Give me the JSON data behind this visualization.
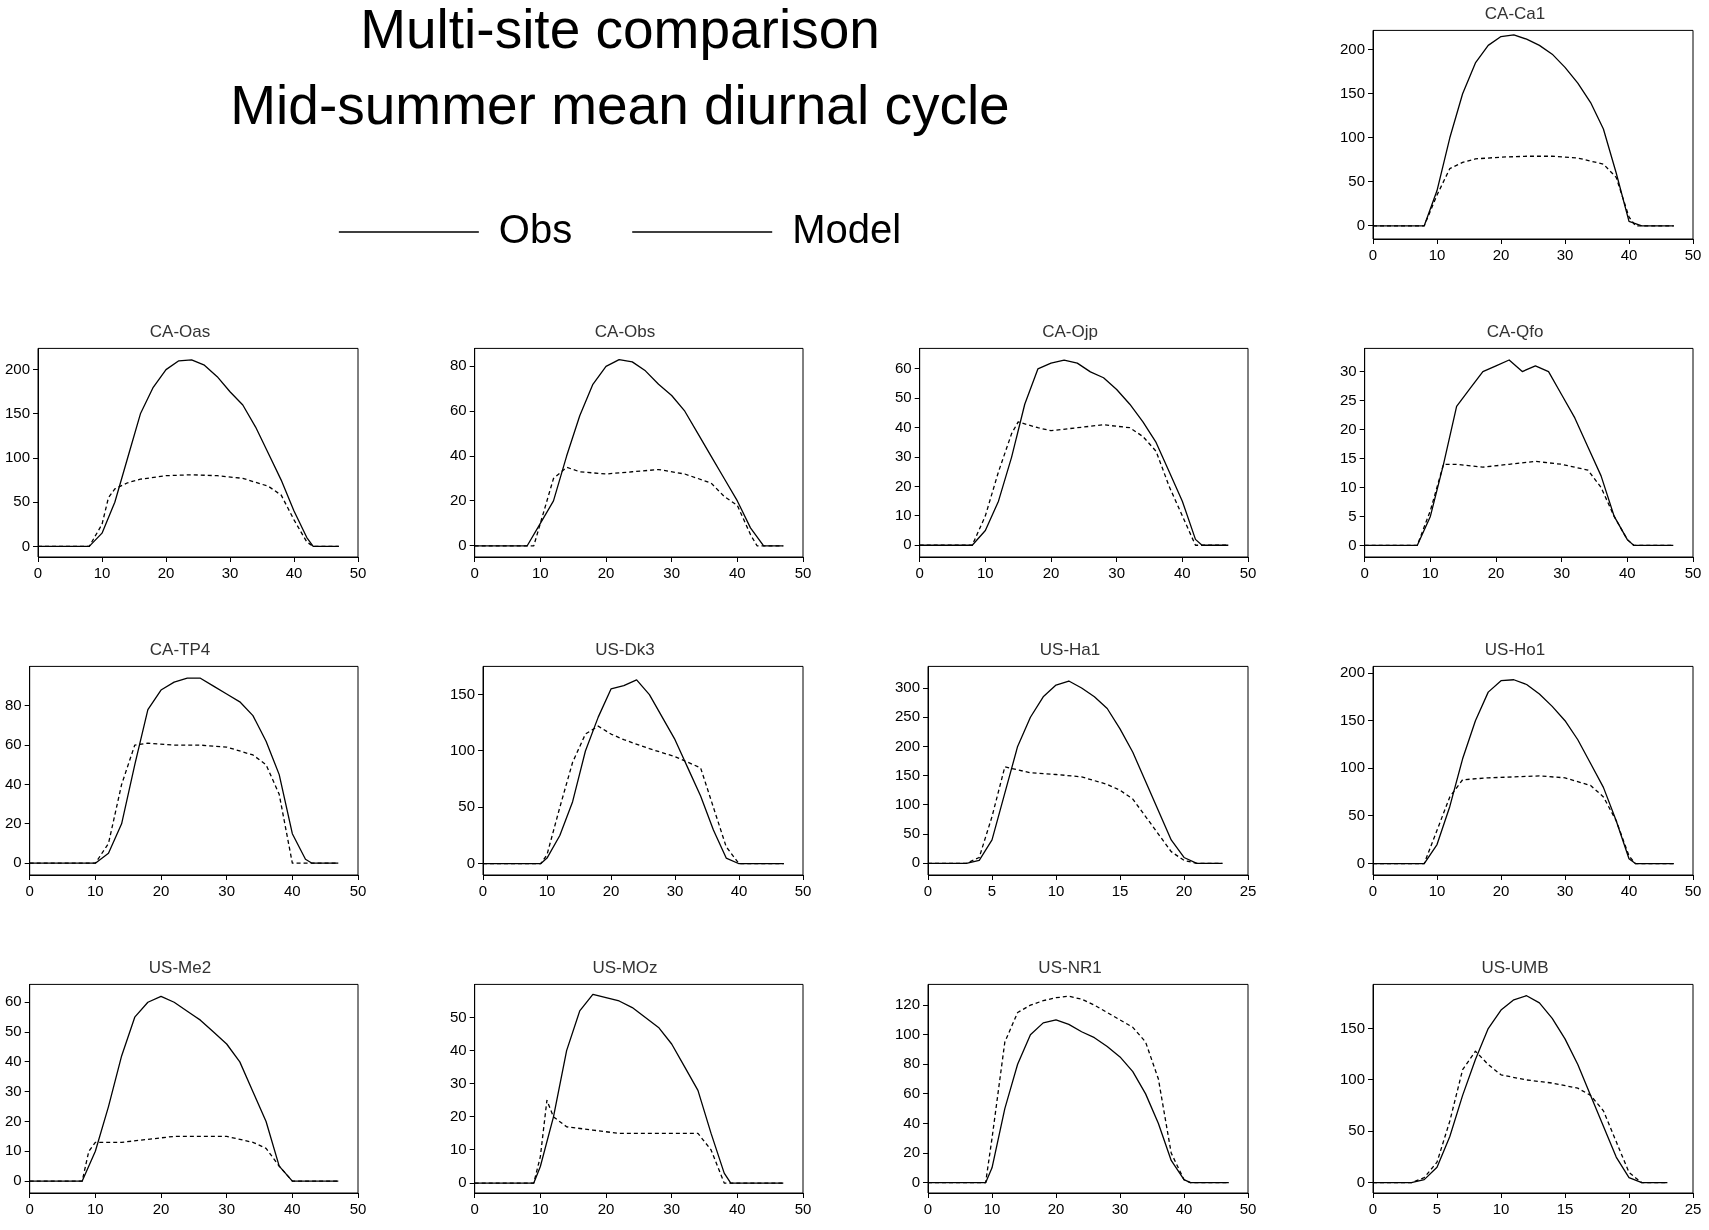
{
  "chart_data": [
    {
      "type": "other",
      "title": "Multi-site comparison",
      "subtitle": "Mid-summer mean diurnal cycle",
      "legend": "bottom",
      "series": [
        {
          "name": "Obs",
          "color": "#000000",
          "line_style": "solid"
        },
        {
          "name": "Model",
          "color": "#000000",
          "line_style": "dashed"
        }
      ]
    },
    {
      "type": "line",
      "title": "CA-Ca1",
      "xlim": [
        0,
        50
      ],
      "xticks": [
        0,
        10,
        20,
        30,
        40,
        50
      ],
      "ylim": [
        -15,
        222
      ],
      "yticks": [
        0,
        50,
        100,
        150,
        200
      ],
      "series": [
        {
          "color": "#000000",
          "line_style": "solid",
          "x": [
            0,
            8,
            10,
            12,
            14,
            16,
            18,
            20,
            22,
            24,
            26,
            28,
            30,
            32,
            34,
            36,
            38,
            40,
            42,
            47
          ],
          "values": [
            0,
            0,
            40,
            100,
            150,
            185,
            205,
            215,
            217,
            212,
            205,
            195,
            180,
            162,
            140,
            110,
            60,
            5,
            0,
            0
          ]
        },
        {
          "color": "#000000",
          "line_style": "dashed",
          "x": [
            0,
            8,
            10,
            12,
            14,
            16,
            20,
            24,
            28,
            32,
            36,
            38,
            40,
            41,
            47
          ],
          "values": [
            0,
            0,
            35,
            65,
            72,
            76,
            78,
            79,
            79,
            77,
            70,
            55,
            10,
            0,
            0
          ]
        }
      ]
    },
    {
      "type": "line",
      "title": "CA-Oas",
      "xlim": [
        0,
        50
      ],
      "xticks": [
        0,
        10,
        20,
        30,
        40,
        50
      ],
      "ylim": [
        -12,
        224
      ],
      "yticks": [
        0,
        50,
        100,
        150,
        200
      ],
      "series": [
        {
          "color": "#000000",
          "line_style": "solid",
          "x": [
            0,
            8,
            10,
            12,
            14,
            16,
            18,
            20,
            22,
            24,
            26,
            28,
            30,
            32,
            34,
            36,
            38,
            40,
            42,
            43,
            47
          ],
          "values": [
            0,
            0,
            15,
            50,
            100,
            150,
            180,
            200,
            210,
            211,
            205,
            192,
            175,
            160,
            135,
            105,
            75,
            40,
            10,
            0,
            0
          ]
        },
        {
          "color": "#000000",
          "line_style": "dashed",
          "x": [
            0,
            8,
            10,
            11,
            12,
            14,
            16,
            20,
            24,
            28,
            32,
            36,
            38,
            40,
            42,
            43,
            47
          ],
          "values": [
            0,
            0,
            25,
            55,
            65,
            72,
            76,
            80,
            81,
            80,
            77,
            68,
            58,
            30,
            5,
            0,
            0
          ]
        }
      ]
    },
    {
      "type": "line",
      "title": "CA-Obs",
      "xlim": [
        0,
        50
      ],
      "xticks": [
        0,
        10,
        20,
        30,
        40,
        50
      ],
      "ylim": [
        -5,
        88
      ],
      "yticks": [
        0,
        20,
        40,
        60,
        80
      ],
      "series": [
        {
          "color": "#000000",
          "line_style": "solid",
          "x": [
            0,
            8,
            10,
            12,
            14,
            16,
            18,
            20,
            22,
            24,
            26,
            28,
            30,
            32,
            34,
            36,
            38,
            40,
            42,
            44,
            47
          ],
          "values": [
            0,
            0,
            10,
            20,
            40,
            58,
            72,
            80,
            83,
            82,
            78,
            72,
            67,
            60,
            50,
            40,
            30,
            20,
            8,
            0,
            0
          ]
        },
        {
          "color": "#000000",
          "line_style": "dashed",
          "x": [
            0,
            9,
            10,
            12,
            14,
            16,
            20,
            24,
            28,
            32,
            36,
            38,
            40,
            42,
            43,
            47
          ],
          "values": [
            0,
            0,
            10,
            30,
            35,
            33,
            32,
            33,
            34,
            32,
            28,
            22,
            18,
            5,
            0,
            0
          ]
        }
      ]
    },
    {
      "type": "line",
      "title": "CA-Ojp",
      "xlim": [
        0,
        50
      ],
      "xticks": [
        0,
        10,
        20,
        30,
        40,
        50
      ],
      "ylim": [
        -4,
        67
      ],
      "yticks": [
        0,
        10,
        20,
        30,
        40,
        50,
        60
      ],
      "series": [
        {
          "color": "#000000",
          "line_style": "solid",
          "x": [
            0,
            8,
            10,
            12,
            14,
            16,
            18,
            20,
            22,
            24,
            26,
            28,
            30,
            32,
            34,
            36,
            38,
            40,
            42,
            43,
            47
          ],
          "values": [
            0,
            0,
            5,
            15,
            30,
            48,
            60,
            62,
            63,
            62,
            59,
            57,
            53,
            48,
            42,
            35,
            25,
            15,
            2,
            0,
            0
          ]
        },
        {
          "color": "#000000",
          "line_style": "dashed",
          "x": [
            0,
            8,
            10,
            12,
            14,
            15,
            18,
            20,
            24,
            28,
            32,
            34,
            36,
            38,
            40,
            42,
            47
          ],
          "values": [
            0,
            0,
            10,
            25,
            38,
            42,
            40,
            39,
            40,
            41,
            40,
            37,
            32,
            20,
            10,
            0,
            0
          ]
        }
      ]
    },
    {
      "type": "line",
      "title": "CA-Qfo",
      "xlim": [
        0,
        50
      ],
      "xticks": [
        0,
        10,
        20,
        30,
        40,
        50
      ],
      "ylim": [
        -2,
        34
      ],
      "yticks": [
        0,
        5,
        10,
        15,
        20,
        25,
        30
      ],
      "series": [
        {
          "color": "#000000",
          "line_style": "solid",
          "x": [
            0,
            8,
            10,
            12,
            14,
            16,
            18,
            20,
            22,
            24,
            26,
            28,
            30,
            32,
            34,
            36,
            38,
            40,
            41,
            47
          ],
          "values": [
            0,
            0,
            5,
            14,
            24,
            27,
            30,
            31,
            32,
            30,
            31,
            30,
            26,
            22,
            17,
            12,
            5,
            1,
            0,
            0
          ]
        },
        {
          "color": "#000000",
          "line_style": "dashed",
          "x": [
            0,
            8,
            10,
            12,
            14,
            18,
            22,
            26,
            30,
            34,
            36,
            38,
            40,
            41,
            47
          ],
          "values": [
            0,
            0,
            6,
            14,
            14,
            13.5,
            14,
            14.5,
            14,
            13,
            10,
            5,
            1,
            0,
            0
          ]
        }
      ]
    },
    {
      "type": "line",
      "title": "CA-TP4",
      "xlim": [
        0,
        50
      ],
      "xticks": [
        0,
        10,
        20,
        30,
        40,
        50
      ],
      "ylim": [
        -6,
        100
      ],
      "yticks": [
        0,
        20,
        40,
        60,
        80
      ],
      "series": [
        {
          "color": "#000000",
          "line_style": "solid",
          "x": [
            0,
            10,
            12,
            14,
            16,
            18,
            20,
            22,
            24,
            26,
            28,
            30,
            32,
            34,
            36,
            38,
            40,
            42,
            43,
            47
          ],
          "values": [
            0,
            0,
            5,
            20,
            50,
            78,
            88,
            92,
            94,
            94,
            90,
            86,
            82,
            75,
            62,
            45,
            15,
            2,
            0,
            0
          ]
        },
        {
          "color": "#000000",
          "line_style": "dashed",
          "x": [
            0,
            10,
            12,
            14,
            16,
            18,
            22,
            26,
            30,
            34,
            36,
            38,
            40,
            47
          ],
          "values": [
            0,
            0,
            10,
            40,
            60,
            61,
            60,
            60,
            59,
            55,
            50,
            35,
            0,
            0
          ]
        }
      ]
    },
    {
      "type": "line",
      "title": "US-Dk3",
      "xlim": [
        0,
        50
      ],
      "xticks": [
        0,
        10,
        20,
        30,
        40,
        50
      ],
      "ylim": [
        -10,
        175
      ],
      "yticks": [
        0,
        50,
        100,
        150
      ],
      "series": [
        {
          "color": "#000000",
          "line_style": "solid",
          "x": [
            0,
            9,
            10,
            12,
            14,
            16,
            18,
            20,
            22,
            24,
            26,
            28,
            30,
            32,
            34,
            36,
            38,
            40,
            47
          ],
          "values": [
            0,
            0,
            5,
            25,
            55,
            100,
            130,
            155,
            158,
            163,
            150,
            130,
            110,
            85,
            60,
            30,
            5,
            0,
            0
          ]
        },
        {
          "color": "#000000",
          "line_style": "dashed",
          "x": [
            0,
            9,
            10,
            12,
            14,
            16,
            18,
            20,
            22,
            26,
            30,
            34,
            36,
            38,
            40,
            47
          ],
          "values": [
            0,
            0,
            8,
            50,
            90,
            115,
            122,
            115,
            110,
            102,
            95,
            85,
            50,
            15,
            0,
            0
          ]
        }
      ]
    },
    {
      "type": "line",
      "title": "US-Ha1",
      "xlim": [
        0,
        25
      ],
      "xticks": [
        0,
        5,
        10,
        15,
        20,
        25
      ],
      "ylim": [
        -20,
        337
      ],
      "yticks": [
        0,
        50,
        100,
        150,
        200,
        250,
        300
      ],
      "series": [
        {
          "color": "#000000",
          "line_style": "solid",
          "x": [
            0,
            3,
            4,
            5,
            6,
            7,
            8,
            9,
            10,
            11,
            12,
            13,
            14,
            15,
            16,
            17,
            18,
            19,
            20,
            21,
            23
          ],
          "values": [
            0,
            0,
            5,
            40,
            120,
            200,
            250,
            285,
            305,
            312,
            300,
            285,
            265,
            230,
            190,
            140,
            90,
            40,
            10,
            0,
            0
          ]
        },
        {
          "color": "#000000",
          "line_style": "dashed",
          "x": [
            0,
            3,
            4,
            5,
            6,
            7,
            8,
            10,
            12,
            14,
            15,
            16,
            17,
            18,
            19,
            20,
            21,
            23
          ],
          "values": [
            0,
            0,
            10,
            80,
            165,
            160,
            155,
            152,
            148,
            135,
            125,
            110,
            80,
            50,
            20,
            5,
            0,
            0
          ]
        }
      ]
    },
    {
      "type": "line",
      "title": "US-Ho1",
      "xlim": [
        0,
        50
      ],
      "xticks": [
        0,
        10,
        20,
        30,
        40,
        50
      ],
      "ylim": [
        -12,
        207
      ],
      "yticks": [
        0,
        50,
        100,
        150,
        200
      ],
      "series": [
        {
          "color": "#000000",
          "line_style": "solid",
          "x": [
            0,
            8,
            10,
            12,
            14,
            16,
            18,
            20,
            22,
            24,
            26,
            28,
            30,
            32,
            34,
            36,
            38,
            40,
            41,
            47
          ],
          "values": [
            0,
            0,
            20,
            60,
            110,
            150,
            180,
            192,
            193,
            188,
            178,
            165,
            150,
            130,
            105,
            80,
            45,
            5,
            0,
            0
          ]
        },
        {
          "color": "#000000",
          "line_style": "dashed",
          "x": [
            0,
            8,
            10,
            12,
            14,
            18,
            22,
            26,
            30,
            34,
            36,
            38,
            40,
            41,
            47
          ],
          "values": [
            0,
            0,
            35,
            70,
            88,
            90,
            91,
            92,
            90,
            82,
            70,
            45,
            8,
            0,
            0
          ]
        }
      ]
    },
    {
      "type": "line",
      "title": "US-Me2",
      "xlim": [
        0,
        50
      ],
      "xticks": [
        0,
        10,
        20,
        30,
        40,
        50
      ],
      "ylim": [
        -4,
        66
      ],
      "yticks": [
        0,
        10,
        20,
        30,
        40,
        50,
        60
      ],
      "series": [
        {
          "color": "#000000",
          "line_style": "solid",
          "x": [
            0,
            8,
            10,
            12,
            14,
            16,
            18,
            20,
            22,
            24,
            26,
            28,
            30,
            32,
            34,
            36,
            38,
            40,
            47
          ],
          "values": [
            0,
            0,
            10,
            25,
            42,
            55,
            60,
            62,
            60,
            57,
            54,
            50,
            46,
            40,
            30,
            20,
            5,
            0,
            0
          ]
        },
        {
          "color": "#000000",
          "line_style": "dashed",
          "x": [
            0,
            8,
            9,
            10,
            12,
            14,
            18,
            22,
            26,
            30,
            34,
            36,
            38,
            40,
            47
          ],
          "values": [
            0,
            0,
            10,
            13,
            13,
            13,
            14,
            15,
            15,
            15,
            13,
            11,
            5,
            0,
            0
          ]
        }
      ]
    },
    {
      "type": "line",
      "title": "US-MOz",
      "xlim": [
        0,
        50
      ],
      "xticks": [
        0,
        10,
        20,
        30,
        40,
        50
      ],
      "ylim": [
        -3,
        60
      ],
      "yticks": [
        0,
        10,
        20,
        30,
        40,
        50
      ],
      "series": [
        {
          "color": "#000000",
          "line_style": "solid",
          "x": [
            0,
            9,
            10,
            12,
            14,
            16,
            18,
            20,
            22,
            24,
            26,
            28,
            30,
            32,
            34,
            36,
            38,
            39,
            47
          ],
          "values": [
            0,
            0,
            5,
            20,
            40,
            52,
            57,
            56,
            55,
            53,
            50,
            47,
            42,
            35,
            28,
            15,
            3,
            0,
            0
          ]
        },
        {
          "color": "#000000",
          "line_style": "dashed",
          "x": [
            0,
            9,
            10,
            11,
            12,
            14,
            18,
            22,
            26,
            30,
            34,
            36,
            38,
            47
          ],
          "values": [
            0,
            0,
            8,
            25,
            20,
            17,
            16,
            15,
            15,
            15,
            15,
            10,
            0,
            0
          ]
        }
      ]
    },
    {
      "type": "line",
      "title": "US-NR1",
      "xlim": [
        0,
        50
      ],
      "xticks": [
        0,
        10,
        20,
        30,
        40,
        50
      ],
      "ylim": [
        -7,
        134
      ],
      "yticks": [
        0,
        20,
        40,
        60,
        80,
        100,
        120
      ],
      "series": [
        {
          "color": "#000000",
          "line_style": "solid",
          "x": [
            0,
            9,
            10,
            12,
            14,
            16,
            18,
            20,
            22,
            24,
            26,
            28,
            30,
            32,
            34,
            36,
            38,
            40,
            41,
            47
          ],
          "values": [
            0,
            0,
            10,
            50,
            80,
            100,
            108,
            110,
            107,
            102,
            98,
            92,
            85,
            75,
            60,
            40,
            15,
            2,
            0,
            0
          ]
        },
        {
          "color": "#000000",
          "line_style": "dashed",
          "x": [
            0,
            9,
            10,
            12,
            14,
            16,
            18,
            20,
            22,
            24,
            26,
            28,
            30,
            32,
            34,
            36,
            38,
            40,
            41,
            47
          ],
          "values": [
            0,
            0,
            30,
            95,
            115,
            120,
            123,
            125,
            126,
            124,
            120,
            115,
            110,
            105,
            95,
            70,
            20,
            2,
            0,
            0
          ]
        }
      ]
    },
    {
      "type": "line",
      "title": "US-UMB",
      "xlim": [
        0,
        25
      ],
      "xticks": [
        0,
        5,
        10,
        15,
        20,
        25
      ],
      "ylim": [
        -10,
        193
      ],
      "yticks": [
        0,
        50,
        100,
        150
      ],
      "series": [
        {
          "color": "#000000",
          "line_style": "solid",
          "x": [
            0,
            3,
            4,
            5,
            6,
            7,
            8,
            9,
            10,
            11,
            12,
            13,
            14,
            15,
            16,
            17,
            18,
            19,
            20,
            21,
            23
          ],
          "values": [
            0,
            0,
            3,
            15,
            45,
            85,
            120,
            150,
            168,
            178,
            182,
            175,
            160,
            140,
            115,
            85,
            55,
            25,
            5,
            0,
            0
          ]
        },
        {
          "color": "#000000",
          "line_style": "dashed",
          "x": [
            0,
            3,
            4,
            5,
            6,
            7,
            8,
            9,
            10,
            12,
            14,
            16,
            17,
            18,
            19,
            20,
            21,
            23
          ],
          "values": [
            0,
            0,
            5,
            20,
            60,
            110,
            128,
            115,
            105,
            100,
            97,
            92,
            85,
            70,
            40,
            10,
            0,
            0
          ]
        }
      ]
    }
  ]
}
